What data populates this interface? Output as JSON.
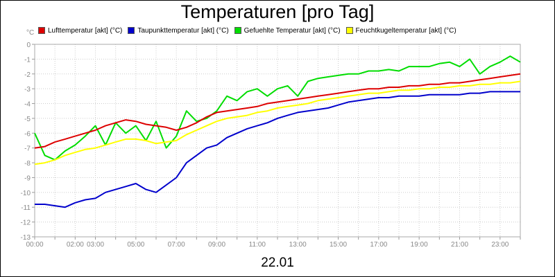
{
  "title": "Temperaturen [pro Tag]",
  "footer_date": "22.01",
  "unit_label": "°C",
  "chart_data": {
    "type": "line",
    "title": "Temperaturen [pro Tag]",
    "xlabel": "22.01",
    "ylabel": "°C",
    "ylim": [
      -13,
      0
    ],
    "xlim": [
      0,
      24
    ],
    "grid": true,
    "legend_position": "top",
    "y_ticks": [
      "0",
      "-1",
      "-2",
      "-3",
      "-4",
      "-5",
      "-6",
      "-7",
      "-8",
      "-9",
      "-10",
      "-11",
      "-12",
      "-13"
    ],
    "x_ticks": [
      {
        "v": 0,
        "label": "00:00"
      },
      {
        "v": 2,
        "label": "02:00"
      },
      {
        "v": 3,
        "label": "03:00"
      },
      {
        "v": 5,
        "label": "05:00"
      },
      {
        "v": 7,
        "label": "07:00"
      },
      {
        "v": 9,
        "label": "09:00"
      },
      {
        "v": 11,
        "label": "11:00"
      },
      {
        "v": 13,
        "label": "13:00"
      },
      {
        "v": 15,
        "label": "15:00"
      },
      {
        "v": 17,
        "label": "17:00"
      },
      {
        "v": 19,
        "label": "19:00"
      },
      {
        "v": 21,
        "label": "21:00"
      },
      {
        "v": 23,
        "label": "23:00"
      }
    ],
    "series": [
      {
        "name": "Lufttemperatur [akt] (°C)",
        "color": "#dd0000",
        "x": [
          0,
          0.5,
          1,
          1.5,
          2,
          2.5,
          3,
          3.5,
          4,
          4.5,
          5,
          5.5,
          6,
          6.5,
          7,
          7.5,
          8,
          8.5,
          9,
          9.5,
          10,
          10.5,
          11,
          11.5,
          12,
          12.5,
          13,
          13.5,
          14,
          14.5,
          15,
          15.5,
          16,
          16.5,
          17,
          17.5,
          18,
          18.5,
          19,
          19.5,
          20,
          20.5,
          21,
          21.5,
          22,
          22.5,
          23,
          23.5,
          24
        ],
        "values": [
          -7.0,
          -6.9,
          -6.6,
          -6.4,
          -6.2,
          -6.0,
          -5.8,
          -5.5,
          -5.3,
          -5.1,
          -5.2,
          -5.4,
          -5.5,
          -5.6,
          -5.8,
          -5.6,
          -5.3,
          -4.9,
          -4.6,
          -4.5,
          -4.4,
          -4.3,
          -4.2,
          -4.0,
          -3.9,
          -3.8,
          -3.7,
          -3.6,
          -3.5,
          -3.4,
          -3.3,
          -3.2,
          -3.1,
          -3.0,
          -3.0,
          -2.9,
          -2.9,
          -2.8,
          -2.8,
          -2.7,
          -2.7,
          -2.6,
          -2.6,
          -2.5,
          -2.4,
          -2.3,
          -2.2,
          -2.1,
          -2.0
        ]
      },
      {
        "name": "Taupunkttemperatur [akt] (°C)",
        "color": "#0000cc",
        "x": [
          0,
          0.5,
          1,
          1.5,
          2,
          2.5,
          3,
          3.5,
          4,
          4.5,
          5,
          5.5,
          6,
          6.5,
          7,
          7.5,
          8,
          8.5,
          9,
          9.5,
          10,
          10.5,
          11,
          11.5,
          12,
          12.5,
          13,
          13.5,
          14,
          14.5,
          15,
          15.5,
          16,
          16.5,
          17,
          17.5,
          18,
          18.5,
          19,
          19.5,
          20,
          20.5,
          21,
          21.5,
          22,
          22.5,
          23,
          23.5,
          24
        ],
        "values": [
          -10.8,
          -10.8,
          -10.9,
          -11.0,
          -10.7,
          -10.5,
          -10.4,
          -10.0,
          -9.8,
          -9.6,
          -9.4,
          -9.8,
          -10.0,
          -9.5,
          -9.0,
          -8.0,
          -7.5,
          -7.0,
          -6.8,
          -6.3,
          -6.0,
          -5.7,
          -5.5,
          -5.3,
          -5.0,
          -4.8,
          -4.6,
          -4.5,
          -4.4,
          -4.3,
          -4.1,
          -3.9,
          -3.8,
          -3.7,
          -3.6,
          -3.6,
          -3.5,
          -3.5,
          -3.5,
          -3.4,
          -3.4,
          -3.4,
          -3.4,
          -3.3,
          -3.3,
          -3.2,
          -3.2,
          -3.2,
          -3.2
        ]
      },
      {
        "name": "Gefuehlte Temperatur [akt] (°C)",
        "color": "#00dd00",
        "x": [
          0,
          0.5,
          1,
          1.5,
          2,
          2.5,
          3,
          3.5,
          4,
          4.5,
          5,
          5.5,
          6,
          6.5,
          7,
          7.5,
          8,
          8.5,
          9,
          9.5,
          10,
          10.5,
          11,
          11.5,
          12,
          12.5,
          13,
          13.5,
          14,
          14.5,
          15,
          15.5,
          16,
          16.5,
          17,
          17.5,
          18,
          18.5,
          19,
          19.5,
          20,
          20.5,
          21,
          21.5,
          22,
          22.5,
          23,
          23.5,
          24
        ],
        "values": [
          -6.0,
          -7.5,
          -7.8,
          -7.2,
          -6.8,
          -6.2,
          -5.5,
          -6.8,
          -5.3,
          -6.0,
          -5.5,
          -6.5,
          -5.2,
          -7.0,
          -6.2,
          -4.5,
          -5.2,
          -5.0,
          -4.5,
          -3.5,
          -3.8,
          -3.2,
          -3.0,
          -3.5,
          -3.0,
          -2.8,
          -3.5,
          -2.5,
          -2.3,
          -2.2,
          -2.1,
          -2.0,
          -2.0,
          -1.8,
          -1.8,
          -1.7,
          -1.8,
          -1.5,
          -1.5,
          -1.5,
          -1.3,
          -1.2,
          -1.5,
          -1.0,
          -2.0,
          -1.5,
          -1.2,
          -0.8,
          -1.2
        ]
      },
      {
        "name": "Feuchtkugeltemperatur [akt] (°C)",
        "color": "#ffff00",
        "x": [
          0,
          0.5,
          1,
          1.5,
          2,
          2.5,
          3,
          3.5,
          4,
          4.5,
          5,
          5.5,
          6,
          6.5,
          7,
          7.5,
          8,
          8.5,
          9,
          9.5,
          10,
          10.5,
          11,
          11.5,
          12,
          12.5,
          13,
          13.5,
          14,
          14.5,
          15,
          15.5,
          16,
          16.5,
          17,
          17.5,
          18,
          18.5,
          19,
          19.5,
          20,
          20.5,
          21,
          21.5,
          22,
          22.5,
          23,
          23.5,
          24
        ],
        "values": [
          -8.1,
          -8.0,
          -7.8,
          -7.5,
          -7.3,
          -7.1,
          -7.0,
          -6.8,
          -6.6,
          -6.4,
          -6.4,
          -6.5,
          -6.7,
          -6.6,
          -6.5,
          -6.1,
          -5.8,
          -5.5,
          -5.2,
          -5.0,
          -4.9,
          -4.8,
          -4.6,
          -4.5,
          -4.3,
          -4.2,
          -4.1,
          -4.0,
          -3.8,
          -3.7,
          -3.6,
          -3.5,
          -3.4,
          -3.3,
          -3.3,
          -3.2,
          -3.1,
          -3.1,
          -3.0,
          -3.0,
          -2.9,
          -2.9,
          -2.8,
          -2.8,
          -2.7,
          -2.7,
          -2.6,
          -2.6,
          -2.5
        ]
      }
    ]
  }
}
